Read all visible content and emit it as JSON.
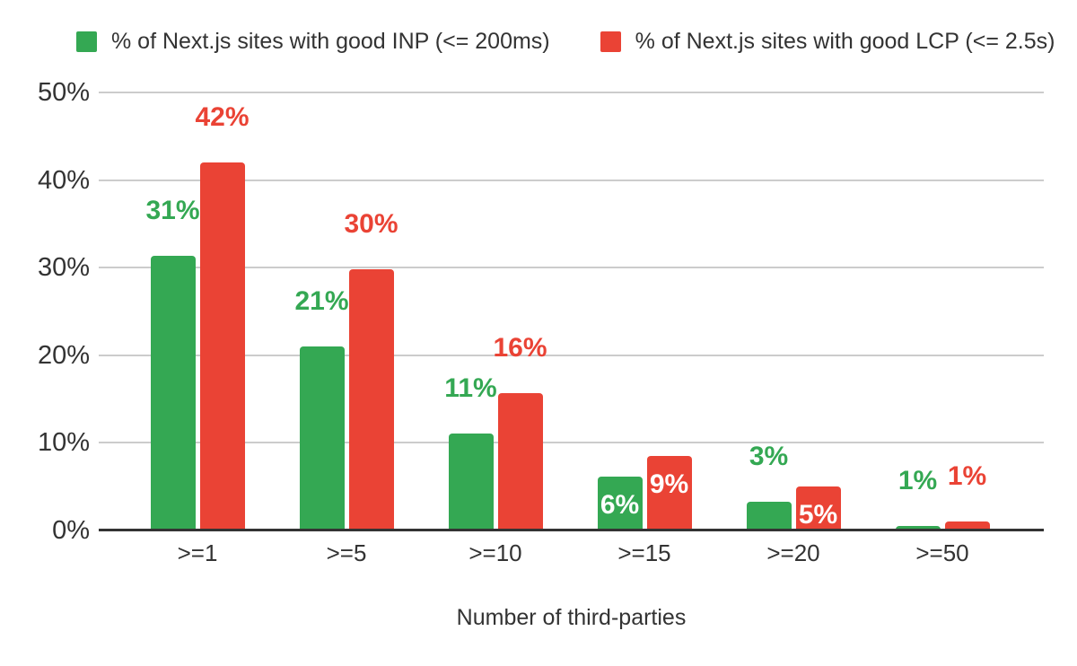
{
  "chart_data": {
    "type": "bar",
    "title": "",
    "categories": [
      ">=1",
      ">=5",
      ">=10",
      ">=15",
      ">=20",
      ">=50"
    ],
    "series": [
      {
        "name": "% of Next.js sites with good INP (<= 200ms)",
        "color": "#34a853",
        "values": [
          31.4,
          21,
          11.1,
          6.1,
          3.3,
          0.5
        ],
        "labels": [
          "31%",
          "21%",
          "11%",
          "6%",
          "3%",
          "1%"
        ],
        "label_positions": [
          "above",
          "above",
          "above",
          "inside",
          "above",
          "above"
        ]
      },
      {
        "name": "% of Next.js sites with good LCP (<= 2.5s)",
        "color": "#ea4335",
        "values": [
          42,
          29.8,
          15.7,
          8.5,
          5,
          1
        ],
        "labels": [
          "42%",
          "30%",
          "16%",
          "9%",
          "5%",
          "1%"
        ],
        "label_positions": [
          "above",
          "above",
          "above",
          "inside",
          "inside",
          "above"
        ]
      }
    ],
    "xlabel": "Number of third-parties",
    "ylabel": "",
    "ylim": [
      0,
      50
    ],
    "yticks": [
      "0%",
      "10%",
      "20%",
      "30%",
      "40%",
      "50%"
    ],
    "grid": true,
    "legend_position": "top-left"
  },
  "colors": {
    "inp_green": "#34a853",
    "lcp_red": "#ea4335",
    "gridline": "#cccccc",
    "axis_line": "#333333",
    "axis_text": "#333333",
    "inside_label_text": "#ffffff",
    "background": "#ffffff"
  }
}
